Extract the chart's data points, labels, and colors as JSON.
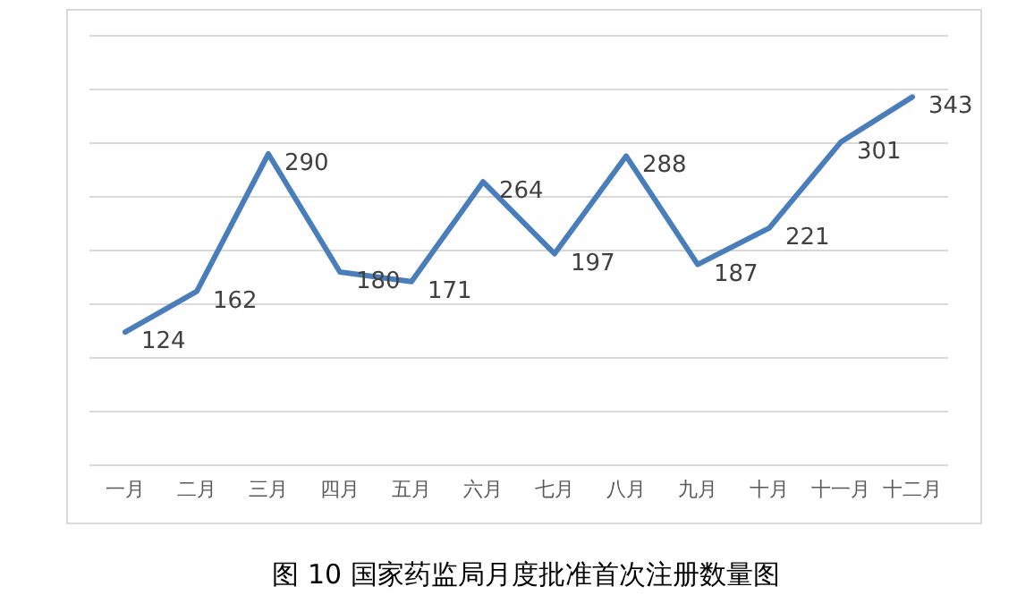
{
  "chart_data": {
    "type": "line",
    "title": "图 10  国家药监局月度批准首次注册数量图",
    "categories": [
      "一月",
      "二月",
      "三月",
      "四月",
      "五月",
      "六月",
      "七月",
      "八月",
      "九月",
      "十月",
      "十一月",
      "十二月"
    ],
    "series": [
      {
        "color": "#4a7ebb",
        "values": [
          124,
          162,
          290,
          180,
          171,
          264,
          197,
          288,
          187,
          221,
          301,
          343
        ]
      }
    ],
    "ylim": [
      0,
      400
    ],
    "yticks": [
      {
        "value": 0,
        "label": null
      },
      {
        "value": 50,
        "label": null
      },
      {
        "value": 100,
        "label": null
      },
      {
        "value": 150,
        "label": null
      },
      {
        "value": 200,
        "label": null
      },
      {
        "value": 250,
        "label": null
      },
      {
        "value": 300,
        "label": null
      },
      {
        "value": 350,
        "label": null
      },
      {
        "value": 400,
        "label": null
      }
    ],
    "grid": "y",
    "tick_labels": "x",
    "data_labels": true,
    "marker": "none",
    "line_style": "solid"
  }
}
